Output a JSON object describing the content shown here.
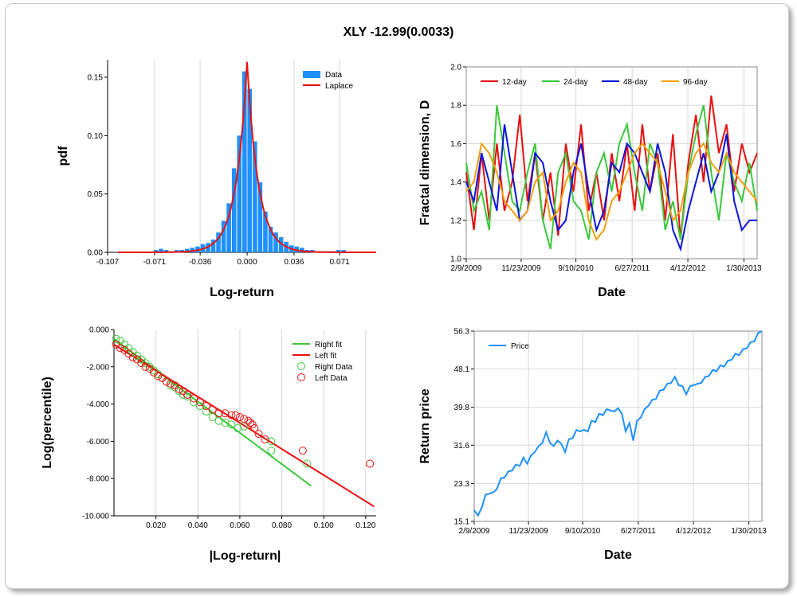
{
  "title": "XLY -12.99(0.0033)",
  "chart_data": [
    {
      "type": "bar",
      "xlabel": "Log-return",
      "ylabel": "pdf",
      "xlim": [
        -0.107,
        0.099
      ],
      "ylim": [
        0,
        0.165
      ],
      "xticks": [
        -0.107,
        -0.071,
        -0.036,
        0.0,
        0.036,
        0.071
      ],
      "xtick_labels": [
        "-0.107",
        "-0.071",
        "-0.036",
        "0.000",
        "0.036",
        "0.071"
      ],
      "yticks": [
        0,
        0.05,
        0.1,
        0.15
      ],
      "ytick_labels": [
        "0.00",
        "0.05",
        "0.10",
        "0.15"
      ],
      "legend": [
        "Data",
        "Laplace"
      ],
      "legend_position": "top-right",
      "colors": {
        "data": "#1e90ff",
        "laplace": "#e81010"
      },
      "laplace": {
        "mu": 0.0,
        "peak": 0.163,
        "decay_scale": 0.0085
      },
      "bins": {
        "x": [
          -0.07,
          -0.066,
          -0.062,
          -0.058,
          -0.054,
          -0.05,
          -0.046,
          -0.042,
          -0.038,
          -0.034,
          -0.03,
          -0.026,
          -0.022,
          -0.018,
          -0.014,
          -0.01,
          -0.006,
          -0.002,
          0.002,
          0.006,
          0.01,
          0.014,
          0.018,
          0.022,
          0.026,
          0.03,
          0.034,
          0.038,
          0.042,
          0.046,
          0.05,
          0.054,
          0.058,
          0.062,
          0.066,
          0.07,
          0.074
        ],
        "values": [
          0.002,
          0.003,
          0.002,
          0.001,
          0.002,
          0.002,
          0.003,
          0.004,
          0.005,
          0.007,
          0.008,
          0.011,
          0.017,
          0.027,
          0.042,
          0.072,
          0.1,
          0.155,
          0.14,
          0.095,
          0.06,
          0.035,
          0.022,
          0.017,
          0.013,
          0.009,
          0.006,
          0.005,
          0.004,
          0.002,
          0.002,
          0.001,
          0.001,
          0.001,
          0.001,
          0.002,
          0.002
        ]
      }
    },
    {
      "type": "line",
      "xlabel": "Date",
      "ylabel": "Fractal dimension, D",
      "ylim": [
        1.0,
        2.0
      ],
      "yticks": [
        1.0,
        1.2,
        1.4,
        1.6,
        1.8,
        2.0
      ],
      "ytick_labels": [
        "1.0",
        "1.2",
        "1.4",
        "1.6",
        "1.8",
        "2.0"
      ],
      "xlim": [
        0,
        1520
      ],
      "xticks": [
        0,
        287,
        573,
        867,
        1158,
        1451
      ],
      "xtick_labels": [
        "2/9/2009",
        "11/23/2009",
        "9/10/2010",
        "6/27/2011",
        "4/12/2012",
        "1/30/2013"
      ],
      "legend_position": "top",
      "series": [
        {
          "name": "12-day",
          "color": "#e81010",
          "x": [
            0,
            40,
            80,
            120,
            160,
            200,
            240,
            280,
            320,
            360,
            400,
            440,
            480,
            520,
            560,
            600,
            640,
            680,
            720,
            760,
            800,
            840,
            880,
            920,
            960,
            1000,
            1040,
            1080,
            1120,
            1160,
            1200,
            1240,
            1280,
            1320,
            1360,
            1400,
            1440,
            1480,
            1520
          ],
          "values": [
            1.45,
            1.15,
            1.55,
            1.2,
            1.6,
            1.25,
            1.4,
            1.75,
            1.3,
            1.55,
            1.2,
            1.45,
            1.12,
            1.6,
            1.35,
            1.7,
            1.25,
            1.45,
            1.2,
            1.55,
            1.3,
            1.6,
            1.25,
            1.7,
            1.35,
            1.55,
            1.2,
            1.65,
            1.1,
            1.5,
            1.75,
            1.4,
            1.85,
            1.55,
            1.7,
            1.35,
            1.6,
            1.45,
            1.55
          ]
        },
        {
          "name": "24-day",
          "color": "#3cc83c",
          "x": [
            0,
            40,
            80,
            120,
            160,
            200,
            240,
            280,
            320,
            360,
            400,
            440,
            480,
            520,
            560,
            600,
            640,
            680,
            720,
            760,
            800,
            840,
            880,
            920,
            960,
            1000,
            1040,
            1080,
            1120,
            1160,
            1200,
            1240,
            1280,
            1320,
            1360,
            1400,
            1440,
            1480,
            1520
          ],
          "values": [
            1.5,
            1.25,
            1.35,
            1.15,
            1.8,
            1.55,
            1.3,
            1.25,
            1.45,
            1.6,
            1.2,
            1.05,
            1.45,
            1.55,
            1.3,
            1.25,
            1.1,
            1.45,
            1.55,
            1.35,
            1.6,
            1.7,
            1.45,
            1.25,
            1.6,
            1.5,
            1.15,
            1.3,
            1.1,
            1.45,
            1.65,
            1.8,
            1.45,
            1.2,
            1.55,
            1.4,
            1.3,
            1.5,
            1.25
          ]
        },
        {
          "name": "48-day",
          "color": "#0a14dc",
          "x": [
            0,
            40,
            80,
            120,
            160,
            200,
            240,
            280,
            320,
            360,
            400,
            440,
            480,
            520,
            560,
            600,
            640,
            680,
            720,
            760,
            800,
            840,
            880,
            920,
            960,
            1000,
            1040,
            1080,
            1120,
            1160,
            1200,
            1240,
            1280,
            1320,
            1360,
            1400,
            1440,
            1480,
            1520
          ],
          "values": [
            1.4,
            1.3,
            1.55,
            1.4,
            1.25,
            1.7,
            1.45,
            1.2,
            1.25,
            1.55,
            1.5,
            1.3,
            1.15,
            1.2,
            1.45,
            1.6,
            1.35,
            1.15,
            1.25,
            1.5,
            1.45,
            1.6,
            1.55,
            1.45,
            1.35,
            1.6,
            1.45,
            1.15,
            1.05,
            1.25,
            1.4,
            1.55,
            1.35,
            1.45,
            1.65,
            1.3,
            1.15,
            1.2,
            1.2
          ]
        },
        {
          "name": "96-day",
          "color": "#f0a010",
          "x": [
            0,
            40,
            80,
            120,
            160,
            200,
            240,
            280,
            320,
            360,
            400,
            440,
            480,
            520,
            560,
            600,
            640,
            680,
            720,
            760,
            800,
            840,
            880,
            920,
            960,
            1000,
            1040,
            1080,
            1120,
            1160,
            1200,
            1240,
            1280,
            1320,
            1360,
            1400,
            1440,
            1480,
            1520
          ],
          "values": [
            1.35,
            1.4,
            1.6,
            1.55,
            1.45,
            1.3,
            1.25,
            1.2,
            1.25,
            1.4,
            1.45,
            1.2,
            1.25,
            1.4,
            1.5,
            1.45,
            1.2,
            1.1,
            1.15,
            1.3,
            1.35,
            1.45,
            1.55,
            1.6,
            1.55,
            1.5,
            1.35,
            1.2,
            1.25,
            1.45,
            1.55,
            1.6,
            1.5,
            1.45,
            1.55,
            1.45,
            1.4,
            1.35,
            1.3
          ]
        }
      ]
    },
    {
      "type": "scatter",
      "xlabel": "|Log-return|",
      "ylabel": "Log(percentile)",
      "xlim": [
        0,
        0.125
      ],
      "ylim": [
        -10,
        0
      ],
      "xticks": [
        0.02,
        0.04,
        0.06,
        0.08,
        0.1,
        0.12
      ],
      "xtick_labels": [
        "0.020",
        "0.040",
        "0.060",
        "0.080",
        "0.100",
        "0.120"
      ],
      "yticks": [
        0,
        -2,
        -4,
        -6,
        -8,
        -10
      ],
      "ytick_labels": [
        "0.000",
        "-2.000",
        "-4.000",
        "-6.000",
        "-8.000",
        "-10.000"
      ],
      "legend_position": "top-right",
      "right_fit": {
        "name": "Right fit",
        "color": "#3cc83c",
        "x": [
          0.0,
          0.094
        ],
        "y": [
          -0.5,
          -8.4
        ]
      },
      "left_fit": {
        "name": "Left fit",
        "color": "#e81010",
        "x": [
          0.0,
          0.124
        ],
        "y": [
          -0.8,
          -9.5
        ]
      },
      "right_data": {
        "name": "Right Data",
        "color": "#3cc83c",
        "x": [
          0.001,
          0.003,
          0.005,
          0.007,
          0.009,
          0.011,
          0.013,
          0.015,
          0.017,
          0.019,
          0.021,
          0.023,
          0.025,
          0.027,
          0.029,
          0.031,
          0.033,
          0.035,
          0.038,
          0.041,
          0.044,
          0.047,
          0.05,
          0.053,
          0.056,
          0.059,
          0.062,
          0.075,
          0.075,
          0.092
        ],
        "y": [
          -0.5,
          -0.6,
          -0.8,
          -1.0,
          -1.2,
          -1.4,
          -1.6,
          -1.8,
          -2.0,
          -2.2,
          -2.4,
          -2.6,
          -2.8,
          -3.0,
          -3.1,
          -3.3,
          -3.5,
          -3.6,
          -3.9,
          -4.1,
          -4.4,
          -4.7,
          -4.9,
          -5.0,
          -5.1,
          -5.3,
          -5.2,
          -6.0,
          -6.5,
          -7.2
        ]
      },
      "left_data": {
        "name": "Left Data",
        "color": "#e81010",
        "x": [
          0.001,
          0.003,
          0.005,
          0.007,
          0.009,
          0.011,
          0.013,
          0.015,
          0.017,
          0.019,
          0.021,
          0.023,
          0.025,
          0.027,
          0.029,
          0.031,
          0.033,
          0.035,
          0.038,
          0.041,
          0.044,
          0.047,
          0.05,
          0.053,
          0.056,
          0.058,
          0.06,
          0.062,
          0.064,
          0.065,
          0.066,
          0.067,
          0.069,
          0.072,
          0.09,
          0.122
        ],
        "y": [
          -0.8,
          -1.0,
          -1.1,
          -1.3,
          -1.5,
          -1.6,
          -1.8,
          -2.0,
          -2.1,
          -2.3,
          -2.5,
          -2.6,
          -2.8,
          -2.9,
          -3.0,
          -3.2,
          -3.3,
          -3.5,
          -3.7,
          -3.9,
          -4.1,
          -4.3,
          -4.5,
          -4.5,
          -4.6,
          -4.6,
          -4.7,
          -4.8,
          -4.9,
          -5.0,
          -5.1,
          -5.3,
          -5.6,
          -5.9,
          -6.5,
          -7.2
        ]
      }
    },
    {
      "type": "line",
      "xlabel": "Date",
      "ylabel": "Return price",
      "ylim": [
        15.1,
        56.3
      ],
      "yticks": [
        15.1,
        23.3,
        31.6,
        39.8,
        48.1,
        56.3
      ],
      "ytick_labels": [
        "15.1",
        "23.3",
        "31.6",
        "39.8",
        "48.1",
        "56.3"
      ],
      "xlim": [
        0,
        1520
      ],
      "xticks": [
        0,
        287,
        573,
        867,
        1158,
        1451
      ],
      "xtick_labels": [
        "2/9/2009",
        "11/23/2009",
        "9/10/2010",
        "6/27/2011",
        "4/12/2012",
        "1/30/2013"
      ],
      "legend_position": "top-left",
      "series": [
        {
          "name": "Price",
          "color": "#1e90ff",
          "x": [
            0,
            20,
            40,
            60,
            80,
            100,
            120,
            140,
            160,
            180,
            200,
            220,
            240,
            260,
            280,
            300,
            320,
            340,
            360,
            380,
            400,
            420,
            440,
            460,
            480,
            500,
            520,
            540,
            560,
            580,
            600,
            620,
            640,
            660,
            680,
            700,
            720,
            740,
            760,
            780,
            800,
            820,
            840,
            860,
            880,
            900,
            920,
            940,
            960,
            980,
            1000,
            1020,
            1040,
            1060,
            1080,
            1100,
            1120,
            1140,
            1160,
            1180,
            1200,
            1220,
            1240,
            1260,
            1280,
            1300,
            1320,
            1340,
            1360,
            1380,
            1400,
            1420,
            1440,
            1460,
            1480,
            1500,
            1520
          ],
          "values": [
            17.5,
            16.0,
            18.5,
            20.5,
            21.5,
            21.0,
            22.5,
            24.0,
            25.0,
            25.5,
            26.5,
            27.0,
            27.5,
            28.5,
            28.0,
            29.0,
            30.5,
            31.0,
            32.5,
            34.0,
            32.5,
            31.0,
            33.0,
            31.5,
            30.5,
            32.5,
            33.5,
            34.5,
            35.0,
            34.5,
            35.0,
            36.5,
            37.0,
            38.0,
            38.5,
            39.0,
            39.5,
            38.5,
            40.0,
            38.0,
            35.0,
            36.0,
            33.0,
            36.5,
            38.0,
            39.0,
            40.5,
            41.0,
            42.0,
            43.0,
            44.0,
            44.5,
            45.5,
            46.0,
            45.0,
            44.0,
            43.0,
            44.0,
            45.0,
            44.5,
            45.5,
            46.0,
            47.0,
            47.5,
            48.0,
            48.5,
            49.0,
            49.5,
            50.5,
            51.0,
            51.5,
            52.0,
            53.0,
            53.5,
            54.5,
            55.5,
            56.3
          ]
        }
      ]
    }
  ]
}
